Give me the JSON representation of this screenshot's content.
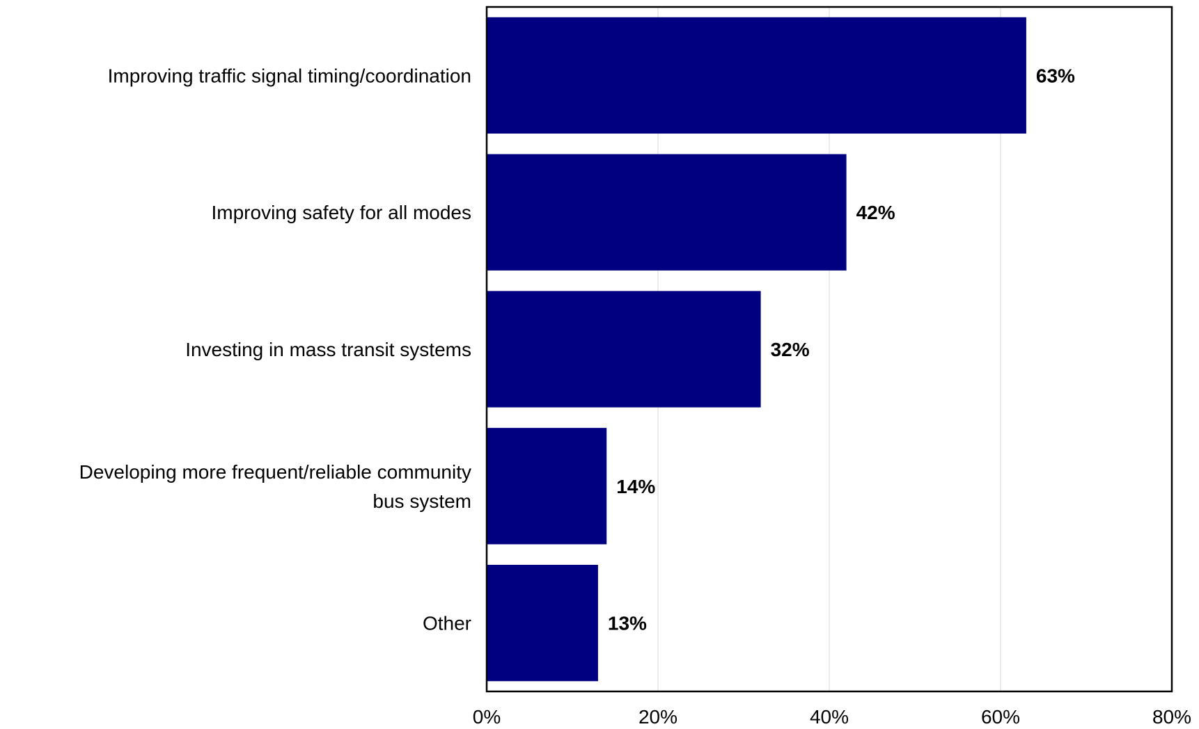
{
  "chart_data": {
    "type": "bar",
    "orientation": "horizontal",
    "categories": [
      [
        "Improving traffic signal timing/coordination"
      ],
      [
        "Improving safety for all modes"
      ],
      [
        "Investing in mass transit systems"
      ],
      [
        "Developing more frequent/reliable community",
        "bus system"
      ],
      [
        "Other"
      ]
    ],
    "values": [
      63,
      42,
      32,
      14,
      13
    ],
    "value_labels": [
      "63%",
      "42%",
      "32%",
      "14%",
      "13%"
    ],
    "xlim": [
      0,
      80
    ],
    "xticks": [
      0,
      20,
      40,
      60,
      80
    ],
    "xtick_labels": [
      "0%",
      "20%",
      "40%",
      "60%",
      "80%"
    ],
    "title": "",
    "xlabel": "",
    "ylabel": "",
    "grid": true,
    "bar_color": "#000080",
    "grid_color": "#d9d9d9"
  }
}
